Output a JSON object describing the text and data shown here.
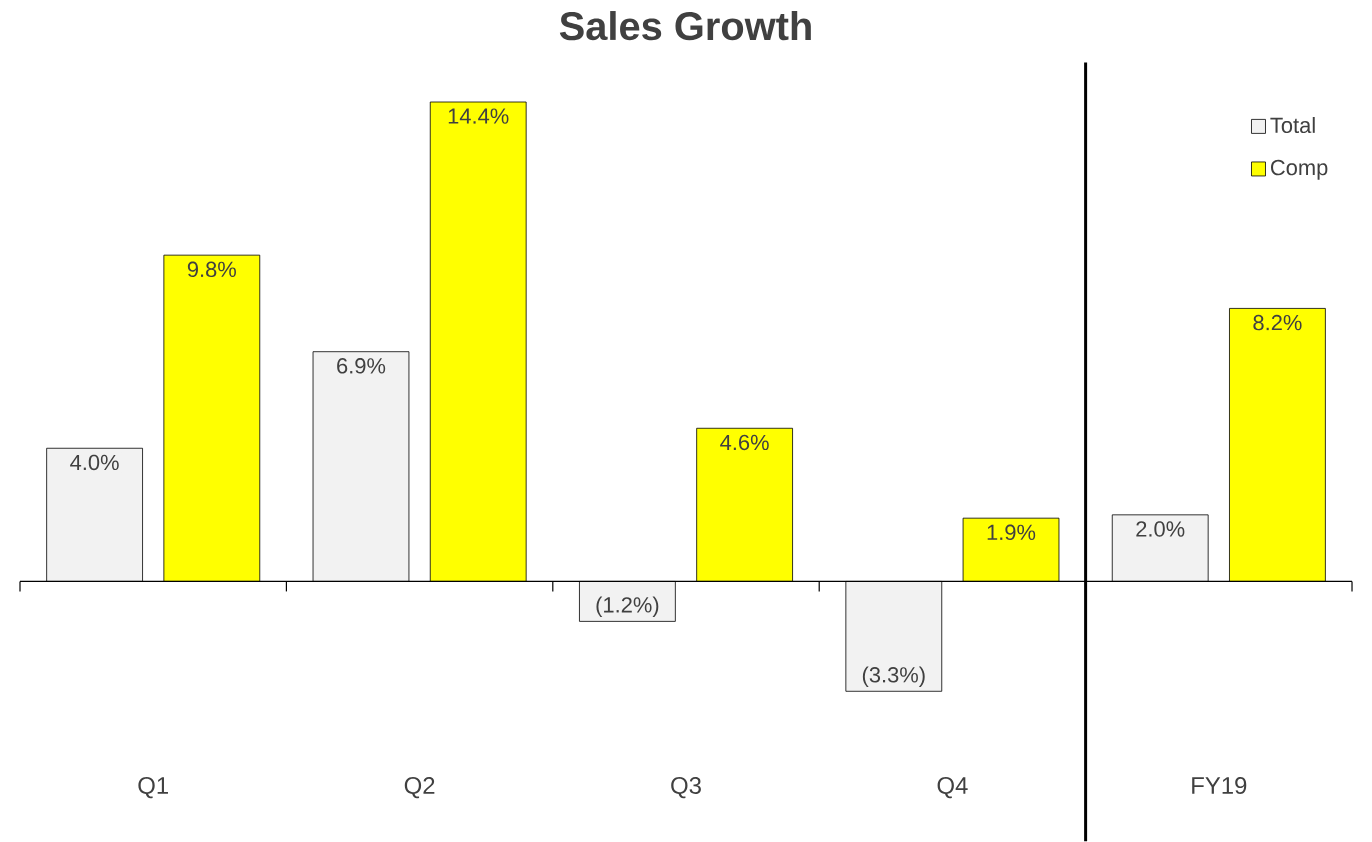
{
  "chart_data": {
    "type": "bar",
    "title": "Sales Growth",
    "categories": [
      "Q1",
      "Q2",
      "Q3",
      "Q4",
      "FY19"
    ],
    "series": [
      {
        "name": "Total",
        "color": "#f2f2f2",
        "values": [
          4.0,
          6.9,
          -1.2,
          -3.3,
          2.0
        ],
        "value_labels": [
          "4.0%",
          "6.9%",
          "(1.2%)",
          "(3.3%)",
          "2.0%"
        ]
      },
      {
        "name": "Comp",
        "color": "#ffff00",
        "values": [
          9.8,
          14.4,
          4.6,
          1.9,
          8.2
        ],
        "value_labels": [
          "9.8%",
          "14.4%",
          "4.6%",
          "1.9%",
          "8.2%"
        ]
      }
    ],
    "legend": "top right"
  }
}
